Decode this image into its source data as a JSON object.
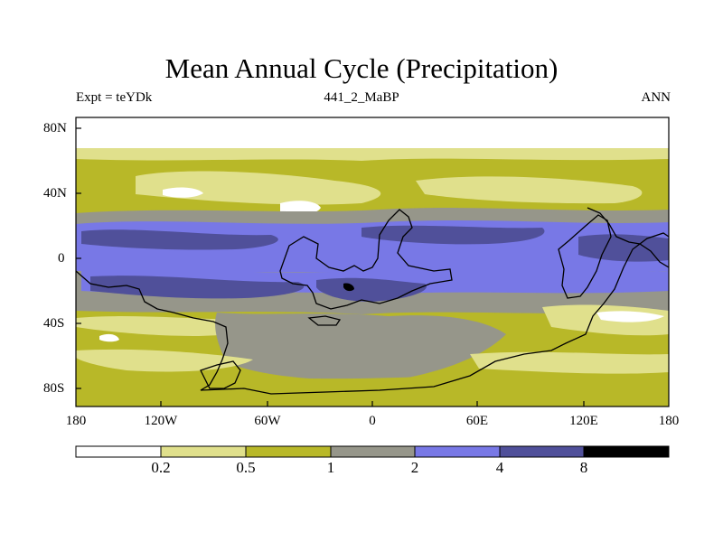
{
  "title": "Mean Annual Cycle (Precipitation)",
  "subtitle_left": "Expt = teYDk",
  "subtitle_center": "441_2_MaBP",
  "subtitle_right": "ANN",
  "lat_labels": [
    "80N",
    "40N",
    "0",
    "40S",
    "80S"
  ],
  "lon_labels": [
    "180",
    "120W",
    "60W",
    "0",
    "60E",
    "120E",
    "180"
  ],
  "colorbar": {
    "labels": [
      "0.2",
      "0.5",
      "1",
      "2",
      "4",
      "8"
    ],
    "colors": [
      "#ffffff",
      "#e0e08c",
      "#b8b828",
      "#96968a",
      "#7878e6",
      "#50509a",
      "#000000"
    ]
  }
}
